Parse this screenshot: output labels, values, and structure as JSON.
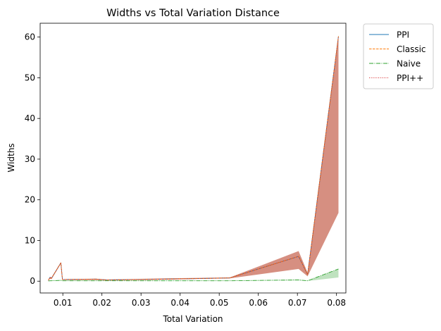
{
  "chart_data": {
    "type": "line",
    "title": "Widths vs Total Variation Distance",
    "xlabel": "Total Variation",
    "ylabel": "Widths",
    "xlim": [
      0.0042,
      0.0824
    ],
    "ylim": [
      -2.9,
      63.4
    ],
    "xticks": [
      0.01,
      0.02,
      0.03,
      0.04,
      0.05,
      0.06,
      0.07,
      0.08
    ],
    "xtick_labels": [
      "0.01",
      "0.02",
      "0.03",
      "0.04",
      "0.05",
      "0.06",
      "0.07",
      "0.08"
    ],
    "yticks": [
      0,
      10,
      20,
      30,
      40,
      50,
      60
    ],
    "ytick_labels": [
      "0",
      "10",
      "20",
      "30",
      "40",
      "50",
      "60"
    ],
    "legend_position": "outside-top-right",
    "x": [
      0.0063,
      0.0067,
      0.0071,
      0.0095,
      0.0099,
      0.0185,
      0.0212,
      0.0365,
      0.0527,
      0.0703,
      0.0726,
      0.0805
    ],
    "series": [
      {
        "name": "PPI",
        "style": "solid",
        "color": "#1f77b4",
        "values": [
          0.2,
          0.9,
          0.7,
          4.5,
          0.4,
          0.5,
          0.3,
          0.5,
          0.8,
          6.1,
          1.6,
          60.2
        ]
      },
      {
        "name": "Classic",
        "style": "dashed",
        "color": "#ff7f0e",
        "values": [
          0.2,
          0.9,
          0.7,
          4.5,
          0.4,
          0.5,
          0.3,
          0.5,
          0.8,
          6.1,
          1.6,
          60.2
        ]
      },
      {
        "name": "Naive",
        "style": "dashdot",
        "color": "#2ca02c",
        "values": [
          0.05,
          0.1,
          0.1,
          0.2,
          0.1,
          0.1,
          0.1,
          0.1,
          0.1,
          0.3,
          0.1,
          3.0
        ]
      },
      {
        "name": "PPI++",
        "style": "dotted",
        "color": "#d62728",
        "values": [
          0.2,
          0.9,
          0.7,
          4.5,
          0.4,
          0.5,
          0.3,
          0.5,
          0.8,
          6.1,
          1.6,
          60.2
        ]
      }
    ],
    "bands": [
      {
        "series": "PPI++",
        "color": "#c0533d",
        "opacity": 0.65,
        "lower": [
          0.1,
          0.6,
          0.5,
          4.3,
          0.3,
          0.3,
          0.2,
          0.4,
          0.7,
          3.0,
          1.2,
          16.8
        ],
        "upper": [
          0.3,
          1.1,
          0.9,
          4.7,
          0.5,
          0.6,
          0.4,
          0.7,
          0.9,
          7.4,
          2.1,
          60.4
        ]
      },
      {
        "series": "Naive",
        "color": "#2ca02c",
        "opacity": 0.3,
        "lower": [
          0.0,
          0.05,
          0.05,
          0.1,
          0.05,
          0.05,
          0.05,
          0.05,
          0.05,
          0.2,
          0.05,
          0.9
        ],
        "upper": [
          0.1,
          0.15,
          0.15,
          0.3,
          0.15,
          0.15,
          0.15,
          0.15,
          0.15,
          0.4,
          0.15,
          3.0
        ]
      }
    ]
  }
}
